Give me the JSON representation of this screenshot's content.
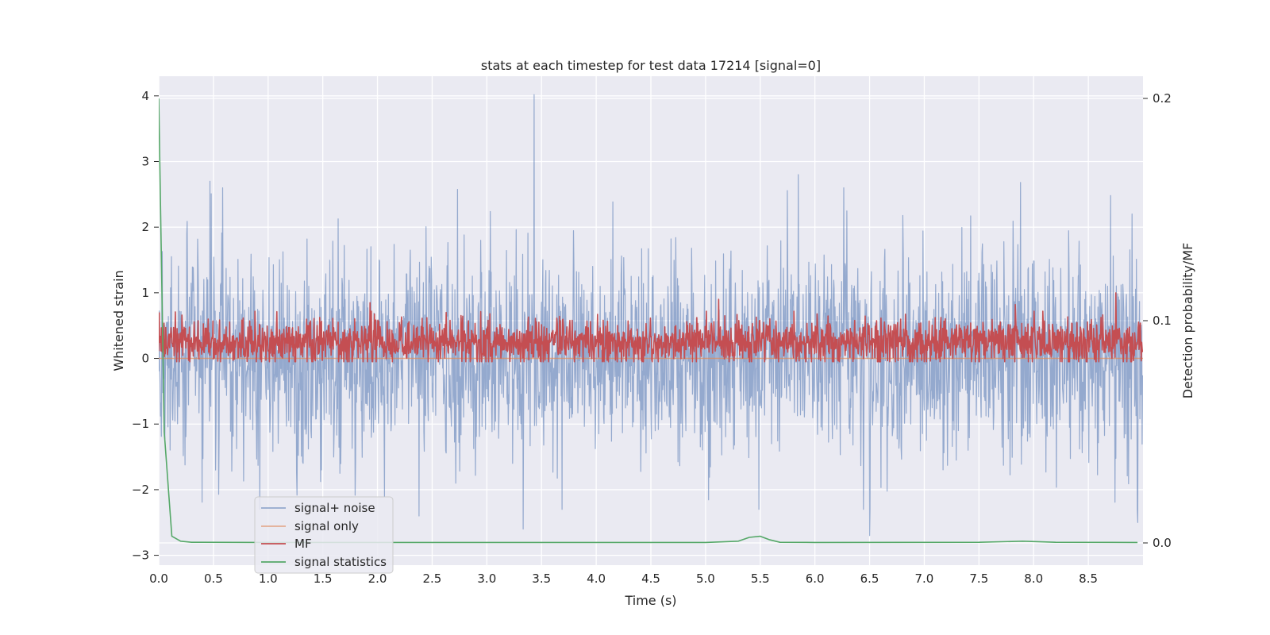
{
  "chart_data": {
    "type": "line",
    "title": "stats at each timestep for test data 17214 [signal=0]",
    "xlabel": "Time (s)",
    "ylabel": "Whitened strain",
    "y2label": "Detection probability/MF",
    "xlim": [
      0.0,
      9.0
    ],
    "ylim": [
      -3.15,
      4.3
    ],
    "y2lim": [
      -0.01,
      0.21
    ],
    "x_ticks": [
      "0.0",
      "0.5",
      "1.0",
      "1.5",
      "2.0",
      "2.5",
      "3.0",
      "3.5",
      "4.0",
      "4.5",
      "5.0",
      "5.5",
      "6.0",
      "6.5",
      "7.0",
      "7.5",
      "8.0",
      "8.5"
    ],
    "y_ticks": [
      "−3",
      "−2",
      "−1",
      "0",
      "1",
      "2",
      "3",
      "4"
    ],
    "y2_ticks": [
      "0.0",
      "0.1",
      "0.2"
    ],
    "grid": true,
    "legend_position": "lower-left",
    "series": [
      {
        "name": "signal+ noise",
        "axis": "left",
        "color": "#4c72b0",
        "kind": "noise",
        "sample_interval": 0.004,
        "sigma": 1.0,
        "peak_points": [
          [
            3.43,
            4.02
          ],
          [
            0.02,
            -0.68
          ],
          [
            6.5,
            -2.7
          ],
          [
            3.33,
            -2.6
          ],
          [
            2.38,
            -2.4
          ],
          [
            8.95,
            -2.5
          ],
          [
            8.9,
            2.2
          ],
          [
            5.85,
            2.8
          ],
          [
            7.88,
            2.68
          ],
          [
            0.47,
            2.7
          ]
        ]
      },
      {
        "name": "signal only",
        "axis": "left",
        "color": "#dd8452",
        "kind": "constant",
        "value": 0.0
      },
      {
        "name": "MF",
        "axis": "left",
        "color": "#c44e52",
        "kind": "mf",
        "sample_interval": 0.004,
        "center": 0.25,
        "peak_points": [
          [
            8.75,
            1.0
          ],
          [
            5.12,
            0.9
          ],
          [
            1.93,
            0.85
          ],
          [
            7.83,
            0.82
          ]
        ]
      },
      {
        "name": "signal statistics",
        "axis": "right",
        "color": "#55a868",
        "kind": "line",
        "points": [
          [
            0.0,
            0.2
          ],
          [
            0.05,
            0.05
          ],
          [
            0.12,
            0.003
          ],
          [
            0.2,
            0.0008
          ],
          [
            0.3,
            0.0003
          ],
          [
            1.0,
            0.0002
          ],
          [
            5.0,
            0.0002
          ],
          [
            5.3,
            0.0008
          ],
          [
            5.4,
            0.0025
          ],
          [
            5.5,
            0.003
          ],
          [
            5.58,
            0.0015
          ],
          [
            5.68,
            0.0003
          ],
          [
            6.0,
            0.0002
          ],
          [
            7.5,
            0.0003
          ],
          [
            7.9,
            0.0008
          ],
          [
            8.2,
            0.0003
          ],
          [
            8.95,
            0.0002
          ]
        ]
      }
    ]
  }
}
